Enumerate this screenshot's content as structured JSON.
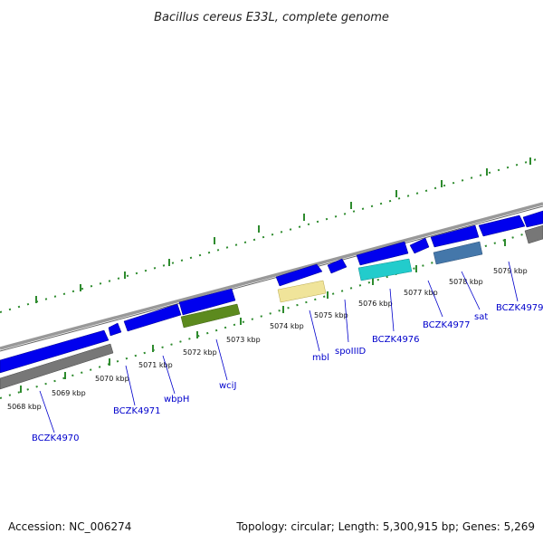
{
  "title": "Bacillus cereus E33L, complete genome",
  "footer": {
    "accession": "Accession: NC_006274",
    "topology": "Topology: circular; Length: 5,300,915 bp; Genes: 5,269"
  },
  "colors": {
    "backbone": "#888888",
    "cds_forward": "#0000ee",
    "rna_gray": "#777777",
    "ruler_ticks": "#2e8b2e",
    "label_text": "#0000cc"
  },
  "ruler": [
    {
      "label": "5068 kbp"
    },
    {
      "label": "5069 kbp"
    },
    {
      "label": "5070 kbp"
    },
    {
      "label": "5071 kbp"
    },
    {
      "label": "5072 kbp"
    },
    {
      "label": "5073 kbp"
    },
    {
      "label": "5074 kbp"
    },
    {
      "label": "5075 kbp"
    },
    {
      "label": "5076 kbp"
    },
    {
      "label": "5077 kbp"
    },
    {
      "label": "5078 kbp"
    },
    {
      "label": "5079 kbp"
    }
  ],
  "gene_labels": [
    {
      "name": "BCZK4970"
    },
    {
      "name": "BCZK4971"
    },
    {
      "name": "wbpH"
    },
    {
      "name": "wciJ"
    },
    {
      "name": "mbl"
    },
    {
      "name": "spoIIID"
    },
    {
      "name": "BCZK4976"
    },
    {
      "name": "BCZK4977"
    },
    {
      "name": "sat"
    },
    {
      "name": "BCZK4979"
    }
  ]
}
